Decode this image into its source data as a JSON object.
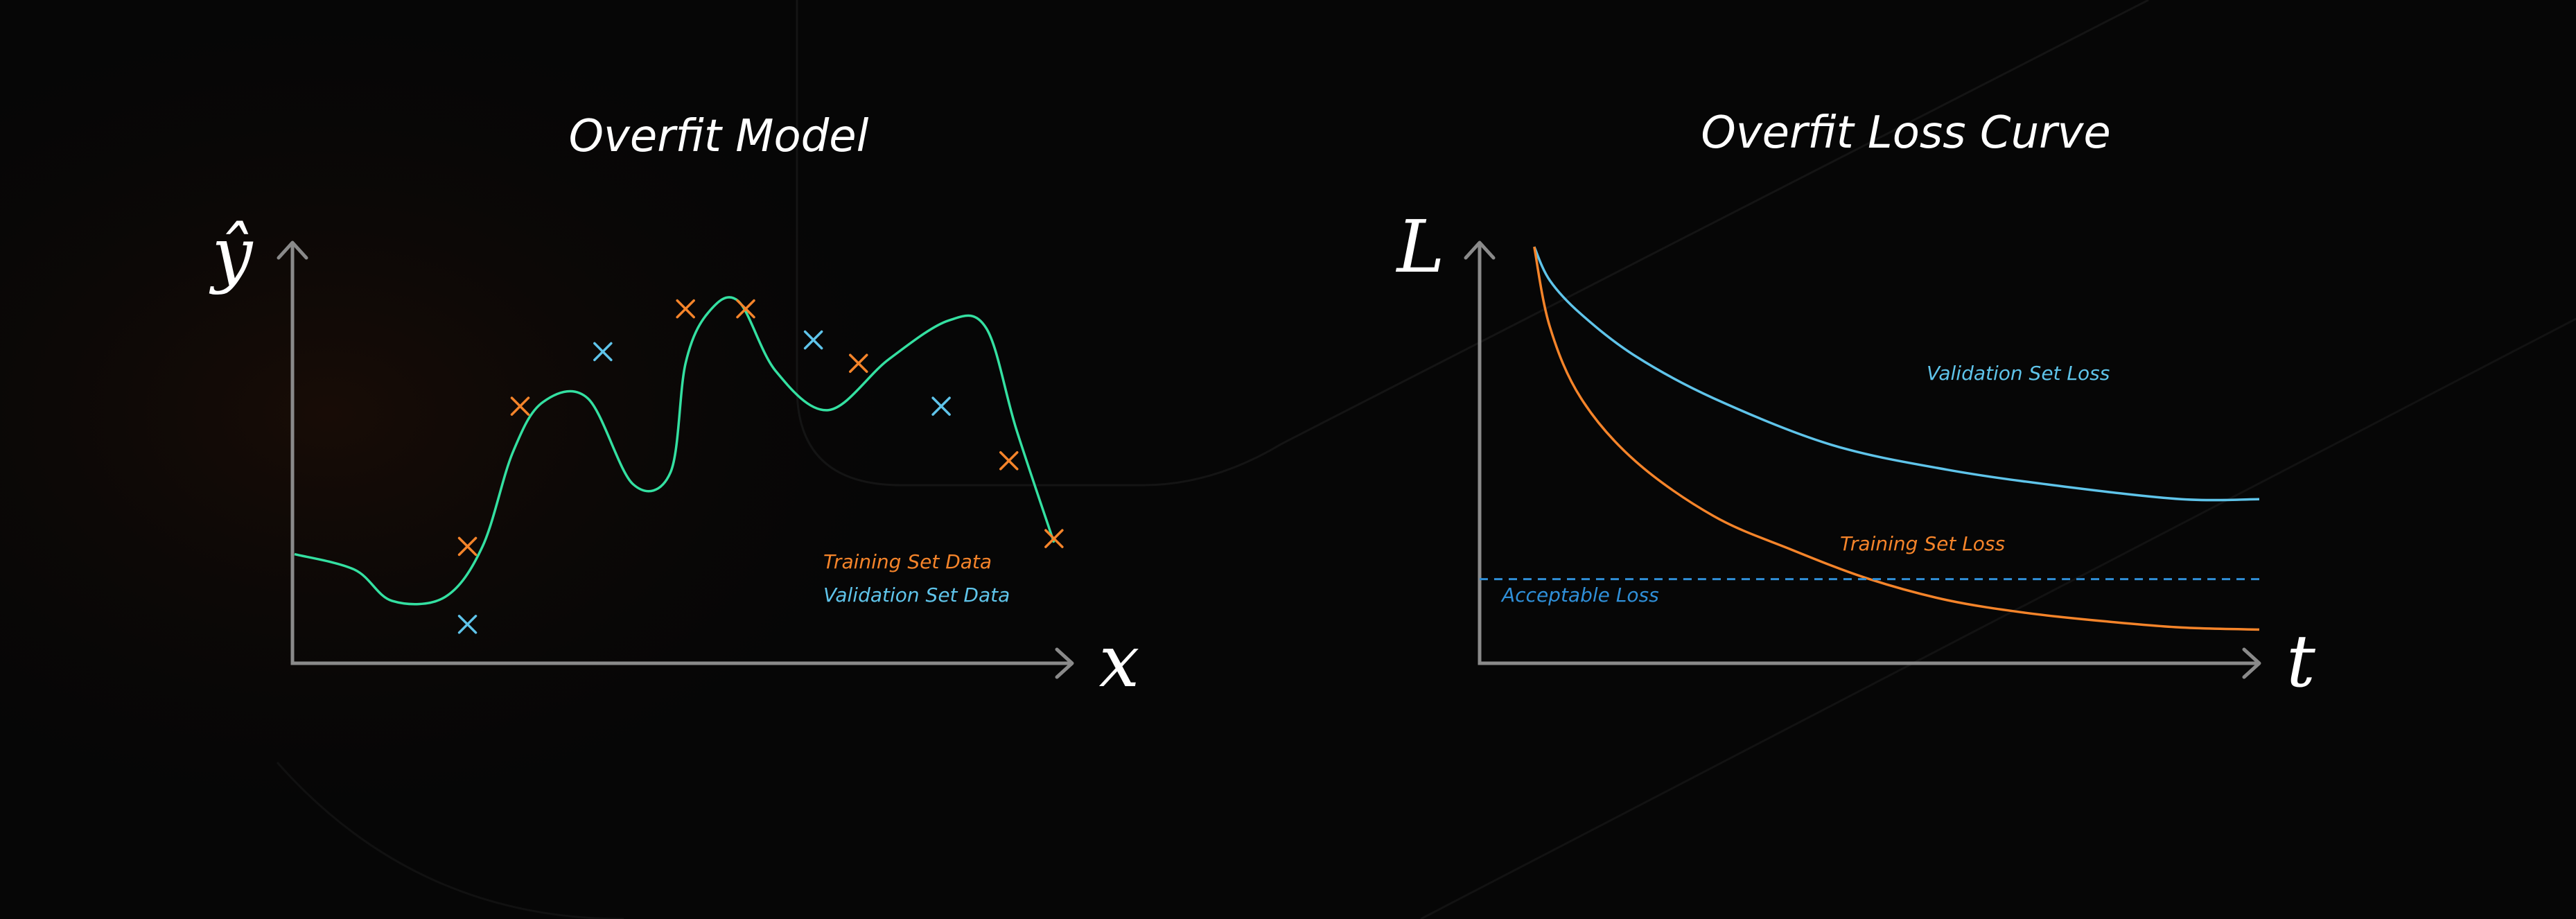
{
  "colors": {
    "background": "#060606",
    "model_curve": "#34e0a1",
    "training": "#f5842a",
    "validation": "#5fc4ea",
    "acceptable": "#2f8fd8",
    "axis": "#8a8a8a",
    "text": "#ffffff"
  },
  "chart_data": [
    {
      "type": "scatter",
      "title": "Overfit Model",
      "xlabel": "x",
      "ylabel": "ŷ",
      "grid": false,
      "legend": {
        "placement": "bottom-right",
        "entries": [
          "Training Set Data",
          "Validation Set Data"
        ]
      },
      "xlim": [
        0,
        10
      ],
      "ylim": [
        0,
        10
      ],
      "series": [
        {
          "name": "Training Set Data",
          "marker": "x",
          "points": [
            [
              2.3,
              3.0
            ],
            [
              3.0,
              6.6
            ],
            [
              5.2,
              9.1
            ],
            [
              6.0,
              9.1
            ],
            [
              7.5,
              7.7
            ],
            [
              9.5,
              5.2
            ],
            [
              10.1,
              3.2
            ]
          ]
        },
        {
          "name": "Validation Set Data",
          "marker": "x",
          "points": [
            [
              2.3,
              1.0
            ],
            [
              4.1,
              8.0
            ],
            [
              6.9,
              8.3
            ],
            [
              8.6,
              6.6
            ]
          ]
        }
      ],
      "curve": [
        [
          0.0,
          2.8
        ],
        [
          0.8,
          2.4
        ],
        [
          1.3,
          1.6
        ],
        [
          2.0,
          1.7
        ],
        [
          2.5,
          3.0
        ],
        [
          2.9,
          5.4
        ],
        [
          3.3,
          6.7
        ],
        [
          3.9,
          6.8
        ],
        [
          4.5,
          4.6
        ],
        [
          5.0,
          4.9
        ],
        [
          5.2,
          7.7
        ],
        [
          5.5,
          9.0
        ],
        [
          5.9,
          9.3
        ],
        [
          6.4,
          7.5
        ],
        [
          7.1,
          6.5
        ],
        [
          7.9,
          7.8
        ],
        [
          8.7,
          8.8
        ],
        [
          9.2,
          8.6
        ],
        [
          9.6,
          6.0
        ],
        [
          10.1,
          3.1
        ]
      ]
    },
    {
      "type": "line",
      "title": "Overfit Loss Curve",
      "xlabel": "t",
      "ylabel": "L",
      "grid": false,
      "xlim": [
        0,
        10
      ],
      "ylim": [
        0,
        10
      ],
      "series": [
        {
          "name": "Validation Set Loss",
          "x": [
            0.7,
            0.9,
            1.3,
            2.0,
            3.0,
            4.5,
            6.0,
            7.5,
            9.0,
            10.0
          ],
          "y": [
            9.9,
            9.1,
            8.3,
            7.3,
            6.3,
            5.2,
            4.6,
            4.2,
            3.9,
            3.9
          ]
        },
        {
          "name": "Training Set Loss",
          "x": [
            0.7,
            0.9,
            1.3,
            2.0,
            3.0,
            4.0,
            5.0,
            6.0,
            7.0,
            8.0,
            9.0,
            10.0
          ],
          "y": [
            9.9,
            8.0,
            6.3,
            4.8,
            3.5,
            2.7,
            2.0,
            1.5,
            1.2,
            1.0,
            0.85,
            0.8
          ]
        },
        {
          "name": "Acceptable Loss",
          "style": "dashed",
          "x": [
            0.0,
            10.0
          ],
          "y": [
            2.0,
            2.0
          ]
        }
      ]
    }
  ]
}
